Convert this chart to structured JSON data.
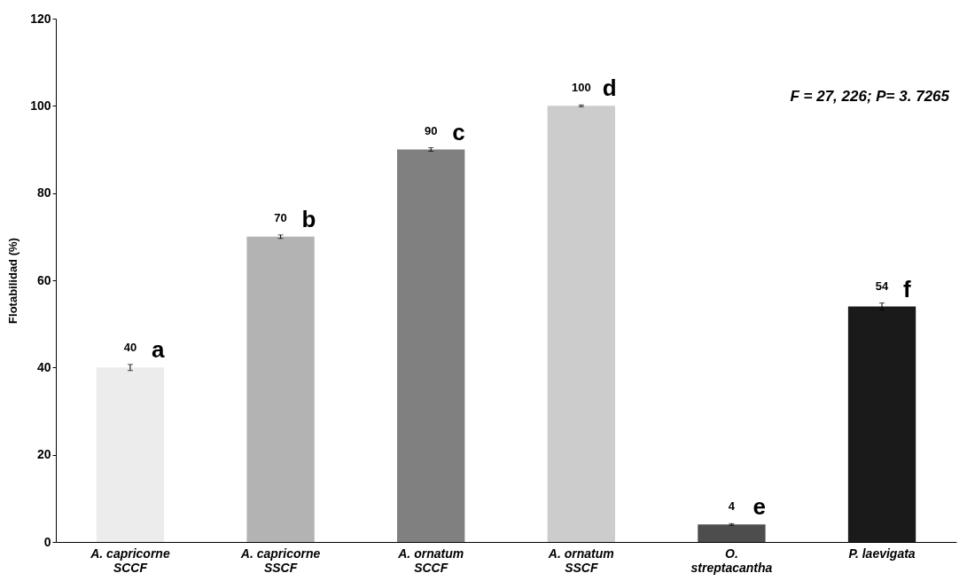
{
  "chart_data": {
    "type": "bar",
    "ylabel": "Flotabilidad (%)",
    "categories": [
      "A. capricorne\nSCCF",
      "A. capricorne\nSSCF",
      "A. ornatum\nSCCF",
      "A. ornatum\nSSCF",
      "O.\nstreptacantha",
      "P. laevigata"
    ],
    "values": [
      40,
      70,
      90,
      100,
      4,
      54
    ],
    "colors": [
      "#ececec",
      "#b3b3b3",
      "#808080",
      "#cccccc",
      "#4d4d4d",
      "#1a1a1a"
    ],
    "errors": [
      0.7,
      0.4,
      0.4,
      0.2,
      0.2,
      0.8
    ],
    "data_labels": true,
    "ylim": [
      0,
      120
    ],
    "yticks": [
      0,
      20,
      40,
      60,
      80,
      100,
      120
    ],
    "grid": false,
    "annotations": [
      {
        "text": "a",
        "x": "A. capricorne\nSCCF",
        "y": 40
      },
      {
        "text": "b",
        "x": "A. capricorne\nSSCF",
        "y": 70
      },
      {
        "text": "c",
        "x": "A. ornatum\nSCCF",
        "y": 90
      },
      {
        "text": "d",
        "x": "A. ornatum\nSSCF",
        "y": 100
      },
      {
        "text": "e",
        "x": "O.\nstreptacantha",
        "y": 4
      },
      {
        "text": "f",
        "x": "P. laevigata",
        "y": 54
      },
      "F = 27, 226; P= 3. 7265"
    ]
  }
}
